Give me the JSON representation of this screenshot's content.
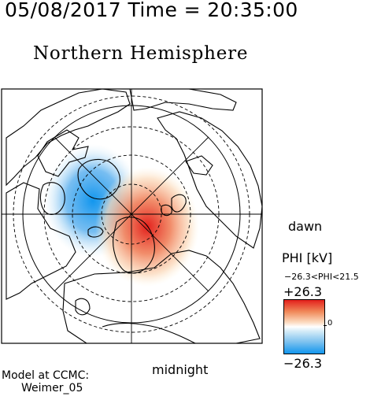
{
  "header": {
    "text": "05/08/2017 Time = 20:35:00"
  },
  "map": {
    "title": "Northern Hemisphere",
    "projection": "polar stereographic, north pole centered",
    "dawn_label": "dawn",
    "midnight_label": "midnight",
    "potential_pattern": {
      "dusk_cell": {
        "sign": "negative",
        "color": "#1296ee",
        "side": "left (dusk)"
      },
      "dawn_cell": {
        "sign": "positive",
        "color": "#e3201c",
        "side": "right (dawn)"
      }
    }
  },
  "colorbar": {
    "title": "PHI [kV]",
    "range_text": "−26.3<PHI<21.5",
    "max_label": "+26.3",
    "min_label": "−26.3",
    "zero_label": "0",
    "colors": {
      "max": "#e3201c",
      "zero": "#ffffff",
      "min": "#1296ee"
    }
  },
  "footer": {
    "line1": "Model at CCMC:",
    "line2": "Weimer_05"
  }
}
